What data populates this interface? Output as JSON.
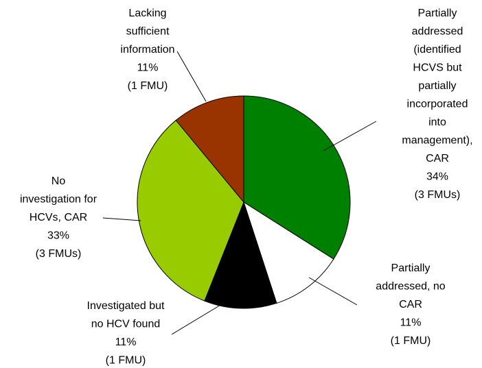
{
  "chart_data": {
    "type": "pie",
    "categories": [
      "Partially\naddressed\n(identified\nHCVS but\npartially\nincorporated\ninto\nmanagement),\nCAR",
      "Partially\naddressed, no\nCAR",
      "Investigated but\nno HCV found",
      "No\ninvestigation for\nHCVs, CAR",
      "Lacking\nsufficient\ninformation"
    ],
    "values": [
      34,
      11,
      11,
      33,
      11
    ],
    "value_labels": [
      "34%",
      "11%",
      "11%",
      "33%",
      "11%"
    ],
    "details": [
      "(3 FMUs)",
      "(1 FMU)",
      "(1 FMU)",
      "(3 FMUs)",
      "(1 FMU)"
    ],
    "colors": [
      "#008000",
      "#ffffff",
      "#000000",
      "#99cc00",
      "#993300"
    ]
  }
}
